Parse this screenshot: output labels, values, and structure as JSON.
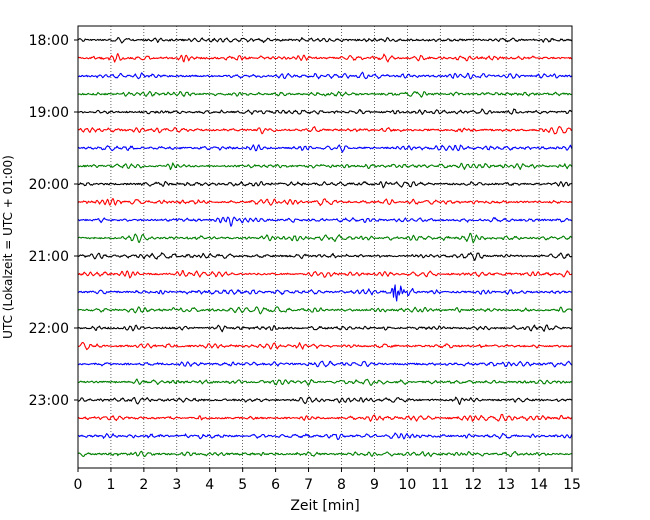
{
  "chart_data": {
    "type": "line",
    "title": "",
    "xlabel": "Zeit  [min]",
    "ylabel": "UTC (Lokalzeit = UTC + 01:00)",
    "xlim": [
      0,
      15
    ],
    "xticks": [
      "0",
      "1",
      "2",
      "3",
      "4",
      "5",
      "6",
      "7",
      "8",
      "9",
      "10",
      "11",
      "12",
      "13",
      "14",
      "15"
    ],
    "yticks": [
      "18:00",
      "19:00",
      "20:00",
      "21:00",
      "22:00",
      "23:00"
    ],
    "grid": "vertical dotted lines at each minute",
    "row_interval_minutes": 15,
    "rows": [
      {
        "start": "18:00",
        "color": "#000000"
      },
      {
        "start": "18:15",
        "color": "#ff0000"
      },
      {
        "start": "18:30",
        "color": "#0000ff"
      },
      {
        "start": "18:45",
        "color": "#008000"
      },
      {
        "start": "19:00",
        "color": "#000000"
      },
      {
        "start": "19:15",
        "color": "#ff0000"
      },
      {
        "start": "19:30",
        "color": "#0000ff"
      },
      {
        "start": "19:45",
        "color": "#008000"
      },
      {
        "start": "20:00",
        "color": "#000000"
      },
      {
        "start": "20:15",
        "color": "#ff0000"
      },
      {
        "start": "20:30",
        "color": "#0000ff"
      },
      {
        "start": "20:45",
        "color": "#008000"
      },
      {
        "start": "21:00",
        "color": "#000000"
      },
      {
        "start": "21:15",
        "color": "#ff0000"
      },
      {
        "start": "21:30",
        "color": "#0000ff",
        "event": {
          "time_min": 9.6,
          "strength": 4
        }
      },
      {
        "start": "21:45",
        "color": "#008000"
      },
      {
        "start": "22:00",
        "color": "#000000"
      },
      {
        "start": "22:15",
        "color": "#ff0000"
      },
      {
        "start": "22:30",
        "color": "#0000ff"
      },
      {
        "start": "22:45",
        "color": "#008000"
      },
      {
        "start": "23:00",
        "color": "#000000"
      },
      {
        "start": "23:15",
        "color": "#ff0000"
      },
      {
        "start": "23:30",
        "color": "#0000ff"
      },
      {
        "start": "23:45",
        "color": "#008000"
      }
    ]
  }
}
